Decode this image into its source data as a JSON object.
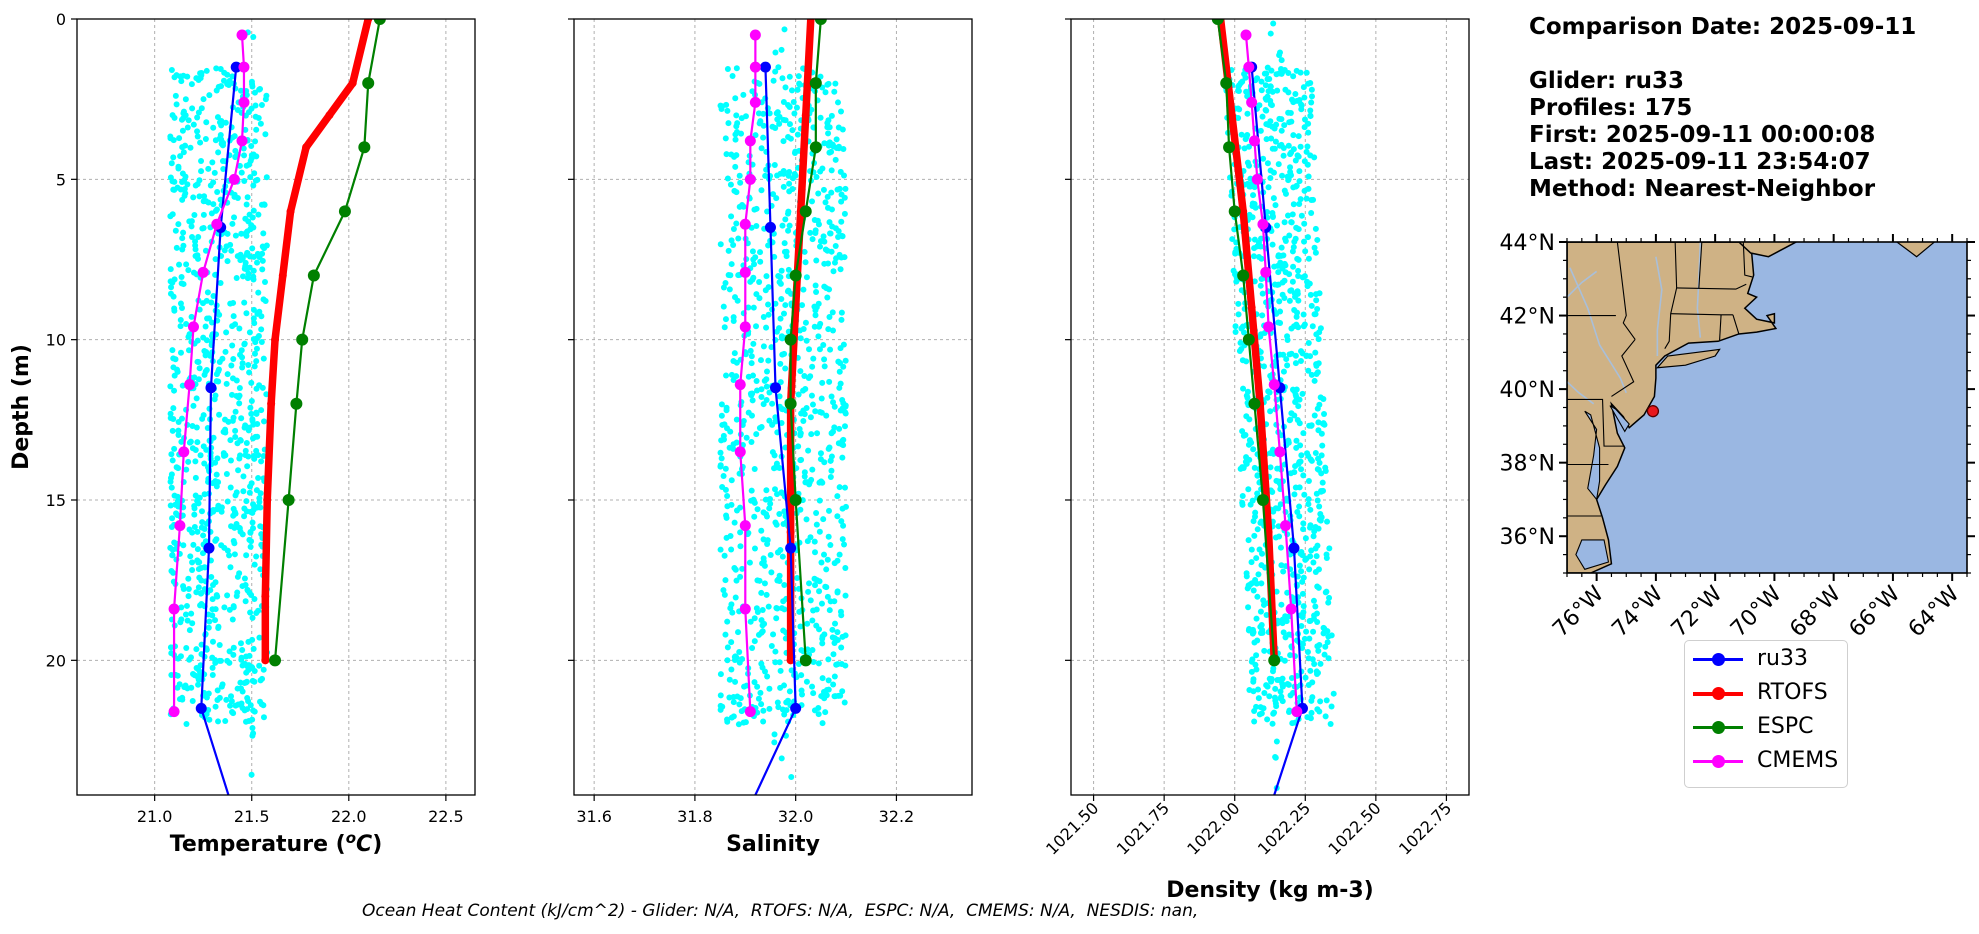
{
  "info": {
    "comparison_date": "Comparison Date: 2025-09-11",
    "glider": "Glider: ru33",
    "profiles": "Profiles: 175",
    "first": "First: 2025-09-11 00:00:08",
    "last": "Last: 2025-09-11 23:54:07",
    "method": "Method: Nearest-Neighbor"
  },
  "footer": "Ocean Heat Content (kJ/cm^2) - Glider: N/A,  RTOFS: N/A,  ESPC: N/A,  CMEMS: N/A,  NESDIS: nan,",
  "colors": {
    "ru33": "#0000ff",
    "RTOFS": "#ff0000",
    "ESPC": "#008000",
    "CMEMS": "#ff00ff",
    "scatter": "#00ffff",
    "land": "#cfb285",
    "ocean": "#9ab7e2",
    "rivers": "#a9bfd9"
  },
  "legend": [
    {
      "name": "ru33",
      "color": "#0000ff",
      "width": 2
    },
    {
      "name": "RTOFS",
      "color": "#ff0000",
      "width": 3
    },
    {
      "name": "ESPC",
      "color": "#008000",
      "width": 2
    },
    {
      "name": "CMEMS",
      "color": "#ff00ff",
      "width": 2
    }
  ],
  "chart_data": [
    {
      "type": "line",
      "xlabel": "Temperature (°C)",
      "ylabel": "Depth (m)",
      "xlim": [
        20.6,
        22.65
      ],
      "ylim": [
        24.2,
        0
      ],
      "xticks": [
        "21.0",
        "21.5",
        "22.0",
        "22.5"
      ],
      "xtick_values": [
        21.0,
        21.5,
        22.0,
        22.5
      ],
      "yticks": [
        "0",
        "5",
        "10",
        "15",
        "20"
      ],
      "ytick_values": [
        0,
        5,
        10,
        15,
        20
      ],
      "grid": true,
      "scatter": {
        "name": "glider profiles",
        "x_range": [
          21.08,
          21.58
        ],
        "depth_range": [
          0,
          24.2
        ]
      },
      "series": [
        {
          "name": "ru33",
          "x": [
            21.42,
            21.34,
            21.29,
            21.28,
            21.24,
            21.38
          ],
          "depth": [
            1.5,
            6.5,
            11.5,
            16.5,
            21.5,
            24.2
          ]
        },
        {
          "name": "RTOFS",
          "x": [
            22.1,
            22.02,
            21.9,
            21.78,
            21.7,
            21.66,
            21.62,
            21.6,
            21.58,
            21.57,
            21.57
          ],
          "depth": [
            0,
            2,
            3,
            4,
            6,
            8,
            10,
            12,
            15,
            18,
            20
          ]
        },
        {
          "name": "ESPC",
          "x": [
            22.16,
            22.1,
            22.08,
            21.98,
            21.82,
            21.76,
            21.73,
            21.69,
            21.62
          ],
          "depth": [
            0,
            2,
            4,
            6,
            8,
            10,
            12,
            15,
            20
          ]
        },
        {
          "name": "CMEMS",
          "x": [
            21.45,
            21.46,
            21.46,
            21.45,
            21.41,
            21.32,
            21.25,
            21.2,
            21.18,
            21.15,
            21.13,
            21.1,
            21.1
          ],
          "depth": [
            0.5,
            1.5,
            2.6,
            3.8,
            5.0,
            6.4,
            7.9,
            9.6,
            11.4,
            13.5,
            15.8,
            18.4,
            21.6
          ]
        }
      ]
    },
    {
      "type": "line",
      "xlabel": "Salinity",
      "xlim": [
        31.56,
        32.35
      ],
      "ylim": [
        24.2,
        0
      ],
      "xticks": [
        "31.6",
        "31.8",
        "32.0",
        "32.2"
      ],
      "xtick_values": [
        31.6,
        31.8,
        32.0,
        32.2
      ],
      "ytick_values": [
        0,
        5,
        10,
        15,
        20
      ],
      "grid": true,
      "scatter": {
        "name": "glider profiles",
        "x_range": [
          31.85,
          32.1
        ],
        "depth_range": [
          0,
          24.2
        ]
      },
      "series": [
        {
          "name": "ru33",
          "x": [
            31.94,
            31.95,
            31.96,
            31.99,
            32.0,
            31.92
          ],
          "depth": [
            1.5,
            6.5,
            11.5,
            16.5,
            21.5,
            24.2
          ]
        },
        {
          "name": "RTOFS",
          "x": [
            32.03,
            32.02,
            32.01,
            32.0,
            31.99,
            31.99,
            31.99
          ],
          "depth": [
            0,
            3,
            6,
            9,
            12,
            16,
            20
          ]
        },
        {
          "name": "ESPC",
          "x": [
            32.05,
            32.04,
            32.04,
            32.02,
            32.0,
            31.99,
            31.99,
            32.0,
            32.02
          ],
          "depth": [
            0,
            2,
            4,
            6,
            8,
            10,
            12,
            15,
            20
          ]
        },
        {
          "name": "CMEMS",
          "x": [
            31.92,
            31.92,
            31.92,
            31.91,
            31.91,
            31.9,
            31.9,
            31.9,
            31.89,
            31.89,
            31.9,
            31.9,
            31.91
          ],
          "depth": [
            0.5,
            1.5,
            2.6,
            3.8,
            5.0,
            6.4,
            7.9,
            9.6,
            11.4,
            13.5,
            15.8,
            18.4,
            21.6
          ]
        }
      ]
    },
    {
      "type": "line",
      "xlabel": "Density (kg m-3)",
      "xlim": [
        1021.42,
        1022.83
      ],
      "ylim": [
        24.2,
        0
      ],
      "xticks": [
        "1021.50",
        "1021.75",
        "1022.00",
        "1022.25",
        "1022.50",
        "1022.75"
      ],
      "xtick_values": [
        1021.5,
        1021.75,
        1022.0,
        1022.25,
        1022.5,
        1022.75
      ],
      "ytick_values": [
        0,
        5,
        10,
        15,
        20
      ],
      "grid": true,
      "scatter": {
        "name": "glider profiles",
        "x_range": [
          1021.96,
          1022.34
        ],
        "depth_range": [
          0,
          24.2
        ]
      },
      "series": [
        {
          "name": "ru33",
          "x": [
            1022.06,
            1022.11,
            1022.16,
            1022.21,
            1022.24,
            1022.14
          ],
          "depth": [
            1.5,
            6.5,
            11.5,
            16.5,
            21.5,
            24.2
          ]
        },
        {
          "name": "RTOFS",
          "x": [
            1021.95,
            1021.99,
            1022.03,
            1022.06,
            1022.09,
            1022.12,
            1022.14
          ],
          "depth": [
            0,
            3,
            6,
            9,
            12,
            16,
            20
          ]
        },
        {
          "name": "ESPC",
          "x": [
            1021.94,
            1021.97,
            1021.98,
            1022.0,
            1022.03,
            1022.05,
            1022.07,
            1022.1,
            1022.14
          ],
          "depth": [
            0,
            2,
            4,
            6,
            8,
            10,
            12,
            15,
            20
          ]
        },
        {
          "name": "CMEMS",
          "x": [
            1022.04,
            1022.05,
            1022.06,
            1022.07,
            1022.08,
            1022.1,
            1022.11,
            1022.12,
            1022.14,
            1022.16,
            1022.18,
            1022.2,
            1022.22
          ],
          "depth": [
            0.5,
            1.5,
            2.6,
            3.8,
            5.0,
            6.4,
            7.9,
            9.6,
            11.4,
            13.5,
            15.8,
            18.4,
            21.6
          ]
        }
      ]
    },
    {
      "type": "map",
      "lon_range": [
        -77,
        -63.5
      ],
      "lat_range": [
        35,
        44
      ],
      "lon_ticks": [
        "76°W",
        "74°W",
        "72°W",
        "70°W",
        "68°W",
        "66°W",
        "64°W"
      ],
      "lon_tick_values": [
        -76,
        -74,
        -72,
        -70,
        -68,
        -66,
        -64
      ],
      "lat_ticks": [
        "36°N",
        "38°N",
        "40°N",
        "42°N",
        "44°N"
      ],
      "lat_tick_values": [
        36,
        38,
        40,
        42,
        44
      ],
      "glider_position": {
        "lon": -74.1,
        "lat": 39.4
      }
    }
  ]
}
